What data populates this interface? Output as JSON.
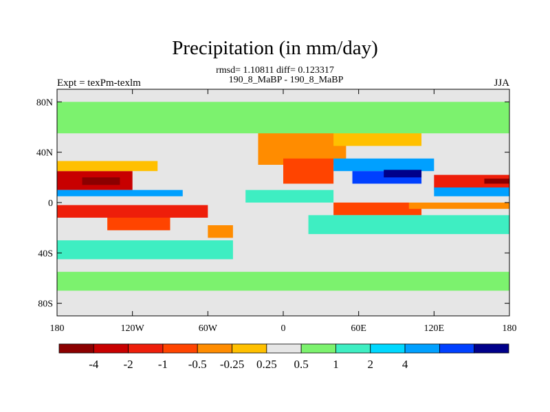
{
  "chart_data": {
    "type": "heatmap",
    "title": "Precipitation (in mm/day)",
    "subtitle_stats": "rmsd= 1.10811 diff= 0.123317",
    "subtitle_runs": "190_8_MaBP - 190_8_MaBP",
    "left_label": "Expt = texPm-texlm",
    "right_label": "JJA",
    "x_ticks": [
      "180",
      "120W",
      "60W",
      "0",
      "60E",
      "120E",
      "180"
    ],
    "y_ticks": [
      "80N",
      "40N",
      "0",
      "40S",
      "80S"
    ],
    "xlim": [
      -180,
      180
    ],
    "ylim": [
      -90,
      90
    ],
    "colorbar": {
      "labels": [
        "-4",
        "-2",
        "-1",
        "-0.5",
        "-0.25",
        "0.25",
        "0.5",
        "1",
        "2",
        "4"
      ],
      "colors": [
        "#8b0000",
        "#c80000",
        "#ee1e0a",
        "#ff4400",
        "#ff8c00",
        "#ffc000",
        "#e6e6e6",
        "#7cf26e",
        "#3eeec2",
        "#00d8ff",
        "#00a0ff",
        "#0040ff",
        "#00008a"
      ]
    },
    "anomaly_regions": [
      {
        "lon": [
          -180,
          -120
        ],
        "lat": [
          10,
          25
        ],
        "level": 1
      },
      {
        "lon": [
          -160,
          -130
        ],
        "lat": [
          14,
          20
        ],
        "level": 0
      },
      {
        "lon": [
          -180,
          -100
        ],
        "lat": [
          25,
          33
        ],
        "level": 5
      },
      {
        "lon": [
          -180,
          -80
        ],
        "lat": [
          5,
          10
        ],
        "level": 10
      },
      {
        "lon": [
          -180,
          -60
        ],
        "lat": [
          -12,
          -2
        ],
        "level": 2
      },
      {
        "lon": [
          -140,
          -90
        ],
        "lat": [
          -22,
          -12
        ],
        "level": 3
      },
      {
        "lon": [
          -60,
          -40
        ],
        "lat": [
          -28,
          -18
        ],
        "level": 4
      },
      {
        "lon": [
          -20,
          50
        ],
        "lat": [
          30,
          60
        ],
        "level": 4
      },
      {
        "lon": [
          0,
          40
        ],
        "lat": [
          15,
          35
        ],
        "level": 3
      },
      {
        "lon": [
          40,
          110
        ],
        "lat": [
          45,
          62
        ],
        "level": 5
      },
      {
        "lon": [
          40,
          110
        ],
        "lat": [
          -10,
          0
        ],
        "level": 3
      },
      {
        "lon": [
          40,
          120
        ],
        "lat": [
          25,
          35
        ],
        "level": 10
      },
      {
        "lon": [
          55,
          110
        ],
        "lat": [
          15,
          25
        ],
        "level": 11
      },
      {
        "lon": [
          80,
          110
        ],
        "lat": [
          20,
          26
        ],
        "level": 12
      },
      {
        "lon": [
          120,
          180
        ],
        "lat": [
          10,
          22
        ],
        "level": 2
      },
      {
        "lon": [
          160,
          180
        ],
        "lat": [
          15,
          19
        ],
        "level": 0
      },
      {
        "lon": [
          120,
          180
        ],
        "lat": [
          5,
          12
        ],
        "level": 10
      },
      {
        "lon": [
          100,
          180
        ],
        "lat": [
          -5,
          0
        ],
        "level": 4
      },
      {
        "lon": [
          20,
          180
        ],
        "lat": [
          -25,
          -10
        ],
        "level": 8
      },
      {
        "lon": [
          -180,
          -40
        ],
        "lat": [
          -45,
          -30
        ],
        "level": 8
      },
      {
        "lon": [
          -180,
          180
        ],
        "lat": [
          -70,
          -55
        ],
        "level": 7
      },
      {
        "lon": [
          -180,
          180
        ],
        "lat": [
          55,
          80
        ],
        "level": 7
      },
      {
        "lon": [
          -30,
          40
        ],
        "lat": [
          0,
          10
        ],
        "level": 8
      }
    ]
  }
}
